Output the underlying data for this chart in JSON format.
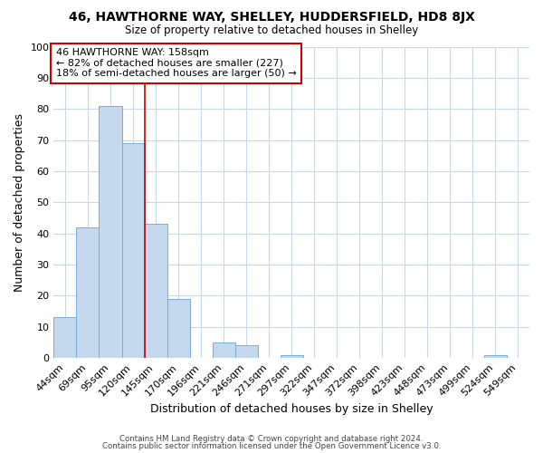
{
  "title": "46, HAWTHORNE WAY, SHELLEY, HUDDERSFIELD, HD8 8JX",
  "subtitle": "Size of property relative to detached houses in Shelley",
  "xlabel": "Distribution of detached houses by size in Shelley",
  "ylabel": "Number of detached properties",
  "bar_labels": [
    "44sqm",
    "69sqm",
    "95sqm",
    "120sqm",
    "145sqm",
    "170sqm",
    "196sqm",
    "221sqm",
    "246sqm",
    "271sqm",
    "297sqm",
    "322sqm",
    "347sqm",
    "372sqm",
    "398sqm",
    "423sqm",
    "448sqm",
    "473sqm",
    "499sqm",
    "524sqm",
    "549sqm"
  ],
  "bar_values": [
    13,
    42,
    81,
    69,
    43,
    19,
    0,
    5,
    4,
    0,
    1,
    0,
    0,
    0,
    0,
    0,
    0,
    0,
    0,
    1,
    0
  ],
  "bar_color": "#c5d9ee",
  "bar_edgecolor": "#7aadd4",
  "ylim": [
    0,
    100
  ],
  "yticks": [
    0,
    10,
    20,
    30,
    40,
    50,
    60,
    70,
    80,
    90,
    100
  ],
  "property_line_x": 3.5,
  "property_line_color": "#cc0000",
  "annotation_text": "46 HAWTHORNE WAY: 158sqm\n← 82% of detached houses are smaller (227)\n18% of semi-detached houses are larger (50) →",
  "annotation_box_color": "#ffffff",
  "annotation_box_edgecolor": "#cc0000",
  "footer_line1": "Contains HM Land Registry data © Crown copyright and database right 2024.",
  "footer_line2": "Contains public sector information licensed under the Open Government Licence v3.0.",
  "background_color": "#ffffff",
  "grid_color": "#c8d8e8"
}
